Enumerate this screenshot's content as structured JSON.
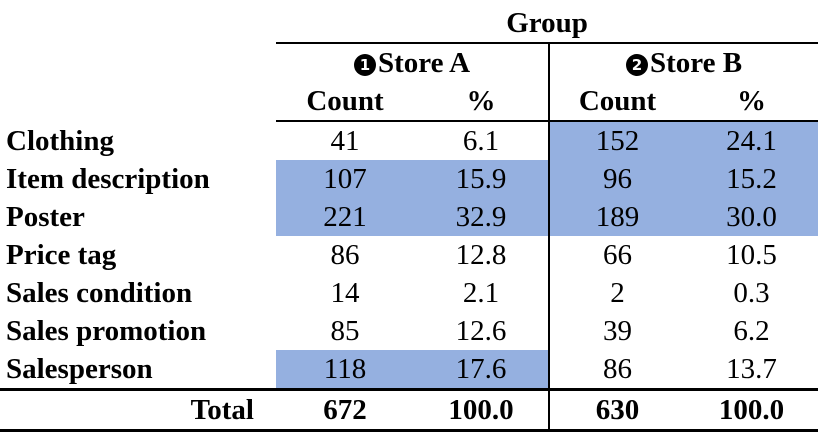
{
  "table": {
    "group_header": "Group",
    "stores": [
      {
        "marker": "1",
        "name": "Store A"
      },
      {
        "marker": "2",
        "name": "Store B"
      }
    ],
    "sub_headers": [
      "Count",
      "%",
      "Count",
      "%"
    ],
    "rows": [
      {
        "label": "Clothing",
        "a_count": "41",
        "a_pct": "6.1",
        "b_count": "152",
        "b_pct": "24.1",
        "highlight_a": false,
        "highlight_b": true
      },
      {
        "label": "Item description",
        "a_count": "107",
        "a_pct": "15.9",
        "b_count": "96",
        "b_pct": "15.2",
        "highlight_a": true,
        "highlight_b": true
      },
      {
        "label": "Poster",
        "a_count": "221",
        "a_pct": "32.9",
        "b_count": "189",
        "b_pct": "30.0",
        "highlight_a": true,
        "highlight_b": true
      },
      {
        "label": "Price tag",
        "a_count": "86",
        "a_pct": "12.8",
        "b_count": "66",
        "b_pct": "10.5",
        "highlight_a": false,
        "highlight_b": false
      },
      {
        "label": "Sales condition",
        "a_count": "14",
        "a_pct": "2.1",
        "b_count": "2",
        "b_pct": "0.3",
        "highlight_a": false,
        "highlight_b": false
      },
      {
        "label": "Sales promotion",
        "a_count": "85",
        "a_pct": "12.6",
        "b_count": "39",
        "b_pct": "6.2",
        "highlight_a": false,
        "highlight_b": false
      },
      {
        "label": "Salesperson",
        "a_count": "118",
        "a_pct": "17.6",
        "b_count": "86",
        "b_pct": "13.7",
        "highlight_a": true,
        "highlight_b": false
      }
    ],
    "total": {
      "label": "Total",
      "a_count": "672",
      "a_pct": "100.0",
      "b_count": "630",
      "b_pct": "100.0"
    }
  },
  "colors": {
    "highlight": "#95b0e0",
    "rule": "#000000"
  }
}
